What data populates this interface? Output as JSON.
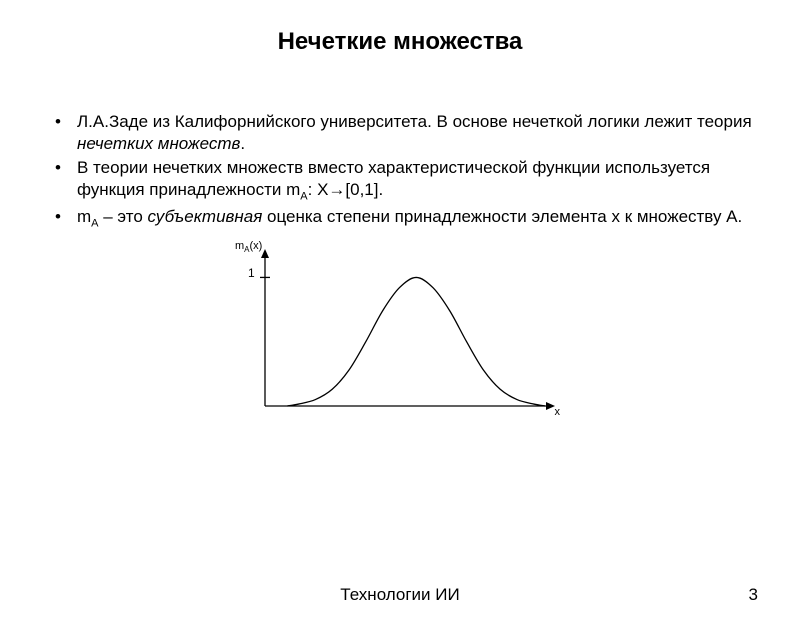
{
  "title": "Нечеткие множества",
  "bullets": [
    {
      "html": "Л.А.Заде из Калифорнийского университета. В основе нечеткой логики лежит теория <span class='italic'>нечетких множеств</span>."
    },
    {
      "html": "В теории нечетких множеств вместо характеристической функции используется функция принадлежности m<span class='sub'>A</span>: X→[0,1]."
    },
    {
      "html": "m<span class='sub'>A</span> – это <span class='italic'>субъективная</span> оценка степени принадлежности элемента x к множеству A."
    }
  ],
  "chart": {
    "type": "line",
    "y_axis_label_html": "m<tspan baseline-shift='sub' font-size='8'>A</tspan>(x)",
    "x_axis_label": "x",
    "ylim": [
      0,
      1.05
    ],
    "tick_label": "1",
    "stroke_color": "#000000",
    "stroke_width": 1.3,
    "background_color": "#ffffff",
    "curve_points": [
      [
        0.08,
        0.0
      ],
      [
        0.12,
        0.015
      ],
      [
        0.18,
        0.05
      ],
      [
        0.24,
        0.13
      ],
      [
        0.3,
        0.28
      ],
      [
        0.36,
        0.5
      ],
      [
        0.42,
        0.74
      ],
      [
        0.48,
        0.92
      ],
      [
        0.54,
        1.0
      ],
      [
        0.6,
        0.92
      ],
      [
        0.66,
        0.74
      ],
      [
        0.72,
        0.5
      ],
      [
        0.78,
        0.28
      ],
      [
        0.84,
        0.13
      ],
      [
        0.9,
        0.05
      ],
      [
        0.96,
        0.015
      ],
      [
        1.0,
        0.0
      ]
    ]
  },
  "footer": "Технологии ИИ",
  "page_number": "3"
}
